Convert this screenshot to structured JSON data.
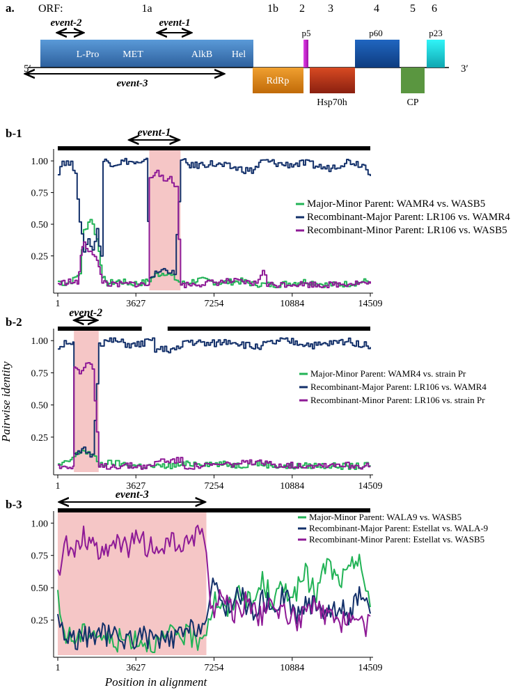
{
  "genome": {
    "panel_label": "a.",
    "orf_label": "ORF:",
    "orf_numbers": [
      "1a",
      "1b",
      "2",
      "3",
      "4",
      "5",
      "6"
    ],
    "five_prime": "5′",
    "three_prime": "3′",
    "domains": [
      "L-Pro",
      "MET",
      "AlkB",
      "Hel"
    ],
    "proteins": {
      "rdrp": "RdRp",
      "p5": "p5",
      "hsp": "Hsp70h",
      "p60": "p60",
      "cp": "CP",
      "p23": "p23"
    },
    "events": [
      "event-2",
      "event-1",
      "event-3"
    ],
    "colors": {
      "orf1a": "#3f7fc0",
      "rdrp": "#e08a18",
      "p5": "#c21cc8",
      "hsp": "#bc3216",
      "p60": "#1653a8",
      "cp": "#5a9640",
      "p23": "#16d6dc"
    }
  },
  "axes": {
    "ylabel": "Pairwise identity",
    "xlabel": "Position in alignment"
  },
  "series_colors": {
    "green": "#22b356",
    "navy": "#13306a",
    "magenta": "#8e1a96",
    "highlight": "#f5c6c6"
  },
  "chart_data": [
    {
      "type": "line",
      "panel_label": "b-1",
      "event_label": "event-1",
      "event_range": [
        3250,
        5700
      ],
      "highlight_range": [
        4250,
        5700
      ],
      "xlim": [
        1,
        14509
      ],
      "ylim": [
        0,
        1.05
      ],
      "x_ticks": [
        1,
        3627,
        7254,
        10884,
        14509
      ],
      "y_ticks": [
        0.25,
        0.5,
        0.75,
        1.0
      ],
      "y_tick_labels": [
        "0.25",
        "0.50",
        "0.75",
        "1.00"
      ],
      "series": [
        {
          "name": "Major-Minor Parent: WAMR4 vs. WASB5",
          "color": "green",
          "points": [
            [
              1,
              0.05
            ],
            [
              300,
              0.03
            ],
            [
              700,
              0.06
            ],
            [
              1000,
              0.12
            ],
            [
              1200,
              0.45
            ],
            [
              1500,
              0.55
            ],
            [
              1800,
              0.38
            ],
            [
              2050,
              0.1
            ],
            [
              2200,
              0.03
            ],
            [
              2800,
              0.05
            ],
            [
              3400,
              0.03
            ],
            [
              4000,
              0.04
            ],
            [
              4250,
              0.06
            ],
            [
              4500,
              0.1
            ],
            [
              5000,
              0.12
            ],
            [
              5500,
              0.06
            ],
            [
              5700,
              0.03
            ],
            [
              6500,
              0.06
            ],
            [
              7500,
              0.04
            ],
            [
              8500,
              0.05
            ],
            [
              9000,
              0.03
            ],
            [
              10000,
              0.02
            ],
            [
              11500,
              0.05
            ],
            [
              12500,
              0.02
            ],
            [
              13500,
              0.03
            ],
            [
              14300,
              0.05
            ],
            [
              14509,
              0.03
            ]
          ]
        },
        {
          "name": "Recombinant-Major Parent: LR106 vs. WAMR4",
          "color": "navy",
          "points": [
            [
              1,
              0.92
            ],
            [
              200,
              1.0
            ],
            [
              600,
              0.97
            ],
            [
              800,
              0.93
            ],
            [
              1000,
              0.5
            ],
            [
              1200,
              0.3
            ],
            [
              1400,
              0.38
            ],
            [
              1600,
              0.3
            ],
            [
              1800,
              0.45
            ],
            [
              2000,
              0.25
            ],
            [
              2100,
              1.0
            ],
            [
              2600,
              0.98
            ],
            [
              3200,
              1.0
            ],
            [
              3800,
              0.97
            ],
            [
              4100,
              1.0
            ],
            [
              4250,
              0.08
            ],
            [
              4600,
              0.12
            ],
            [
              5000,
              0.15
            ],
            [
              5400,
              0.1
            ],
            [
              5700,
              1.0
            ],
            [
              6200,
              0.96
            ],
            [
              7000,
              0.98
            ],
            [
              8000,
              0.95
            ],
            [
              9000,
              0.92
            ],
            [
              9500,
              1.0
            ],
            [
              10500,
              0.97
            ],
            [
              11500,
              0.98
            ],
            [
              12500,
              0.94
            ],
            [
              13500,
              1.0
            ],
            [
              14300,
              0.96
            ],
            [
              14509,
              0.88
            ]
          ]
        },
        {
          "name": "Recombinant-Minor Parent: LR106 vs. WASB5",
          "color": "magenta",
          "points": [
            [
              1,
              0.03
            ],
            [
              500,
              0.05
            ],
            [
              900,
              0.03
            ],
            [
              1050,
              0.25
            ],
            [
              1200,
              0.35
            ],
            [
              1400,
              0.3
            ],
            [
              1600,
              0.28
            ],
            [
              1800,
              0.2
            ],
            [
              2050,
              0.05
            ],
            [
              2500,
              0.02
            ],
            [
              3500,
              0.03
            ],
            [
              4200,
              0.02
            ],
            [
              4250,
              0.85
            ],
            [
              4600,
              0.95
            ],
            [
              4900,
              0.82
            ],
            [
              5200,
              0.88
            ],
            [
              5500,
              0.78
            ],
            [
              5700,
              0.02
            ],
            [
              6500,
              0.03
            ],
            [
              8000,
              0.05
            ],
            [
              9200,
              0.03
            ],
            [
              9500,
              0.15
            ],
            [
              9700,
              0.02
            ],
            [
              11000,
              0.03
            ],
            [
              12500,
              0.02
            ],
            [
              14000,
              0.04
            ],
            [
              14509,
              0.03
            ]
          ]
        }
      ]
    },
    {
      "type": "line",
      "panel_label": "b-2",
      "event_label": "event-2",
      "event_range": [
        700,
        1900
      ],
      "highlight_range": [
        750,
        1900
      ],
      "xlim": [
        1,
        14509
      ],
      "ylim": [
        0,
        1.05
      ],
      "x_ticks": [
        1,
        3627,
        7254,
        10884,
        14509
      ],
      "y_ticks": [
        0.25,
        0.5,
        0.75,
        1.0
      ],
      "y_tick_labels": [
        "0.25",
        "0.50",
        "0.75",
        "1.00"
      ],
      "series": [
        {
          "name": "Major-Minor Parent: WAMR4 vs. strain Pr",
          "color": "green",
          "points": [
            [
              1,
              0.03
            ],
            [
              400,
              0.05
            ],
            [
              750,
              0.1
            ],
            [
              1100,
              0.15
            ],
            [
              1500,
              0.12
            ],
            [
              1900,
              0.04
            ],
            [
              2500,
              0.05
            ],
            [
              3500,
              0.03
            ],
            [
              4500,
              0.02
            ],
            [
              5500,
              0.03
            ],
            [
              6500,
              0.05
            ],
            [
              7500,
              0.04
            ],
            [
              8500,
              0.03
            ],
            [
              9000,
              0.05
            ],
            [
              10500,
              0.02
            ],
            [
              12000,
              0.03
            ],
            [
              13500,
              0.02
            ],
            [
              14509,
              0.03
            ]
          ]
        },
        {
          "name": "Recombinant-Major Parent: LR106 vs. WAMR4",
          "color": "navy",
          "points": [
            [
              1,
              0.95
            ],
            [
              400,
              1.0
            ],
            [
              700,
              0.97
            ],
            [
              750,
              0.1
            ],
            [
              1200,
              0.15
            ],
            [
              1600,
              0.1
            ],
            [
              1900,
              0.98
            ],
            [
              2500,
              1.0
            ],
            [
              3500,
              0.96
            ],
            [
              4400,
              1.0
            ],
            [
              4500,
              0.93
            ],
            [
              5700,
              0.93
            ],
            [
              5800,
              1.0
            ],
            [
              7000,
              0.97
            ],
            [
              8000,
              1.0
            ],
            [
              9000,
              0.95
            ],
            [
              10500,
              1.0
            ],
            [
              12000,
              0.96
            ],
            [
              13500,
              1.0
            ],
            [
              14509,
              0.95
            ]
          ]
        },
        {
          "name": "Recombinant-Minor Parent: LR106 vs. strain Pr",
          "color": "magenta",
          "points": [
            [
              1,
              0.02
            ],
            [
              700,
              0.03
            ],
            [
              750,
              0.8
            ],
            [
              1000,
              0.75
            ],
            [
              1300,
              0.82
            ],
            [
              1600,
              0.78
            ],
            [
              1900,
              0.02
            ],
            [
              3000,
              0.03
            ],
            [
              4400,
              0.02
            ],
            [
              4500,
              0.07
            ],
            [
              5700,
              0.07
            ],
            [
              5800,
              0.02
            ],
            [
              7000,
              0.03
            ],
            [
              9000,
              0.05
            ],
            [
              11000,
              0.03
            ],
            [
              13000,
              0.04
            ],
            [
              14509,
              0.02
            ]
          ]
        }
      ]
    },
    {
      "type": "line",
      "panel_label": "b-3",
      "event_label": "event-3",
      "event_range": [
        1,
        6900
      ],
      "highlight_range": [
        1,
        6900
      ],
      "xlim": [
        1,
        14509
      ],
      "ylim": [
        0,
        1.05
      ],
      "x_ticks": [
        1,
        3627,
        7254,
        10884,
        14509
      ],
      "y_ticks": [
        0.25,
        0.5,
        0.75,
        1.0
      ],
      "y_tick_labels": [
        "0.25",
        "0.50",
        "0.75",
        "1.00"
      ],
      "series": [
        {
          "name": "Major-Minor Parent: WALA9 vs. WASB5",
          "color": "green",
          "points": [
            [
              1,
              0.4
            ],
            [
              300,
              0.15
            ],
            [
              800,
              0.1
            ],
            [
              1500,
              0.18
            ],
            [
              2500,
              0.08
            ],
            [
              3500,
              0.12
            ],
            [
              4500,
              0.06
            ],
            [
              5500,
              0.15
            ],
            [
              6500,
              0.1
            ],
            [
              6900,
              0.2
            ],
            [
              7300,
              0.42
            ],
            [
              7800,
              0.3
            ],
            [
              8500,
              0.5
            ],
            [
              9000,
              0.35
            ],
            [
              9500,
              0.55
            ],
            [
              10000,
              0.4
            ],
            [
              10500,
              0.5
            ],
            [
              11000,
              0.45
            ],
            [
              11500,
              0.6
            ],
            [
              12000,
              0.45
            ],
            [
              12500,
              0.7
            ],
            [
              13000,
              0.55
            ],
            [
              13500,
              0.6
            ],
            [
              14000,
              0.78
            ],
            [
              14300,
              0.45
            ],
            [
              14509,
              0.35
            ]
          ]
        },
        {
          "name": "Recombinant-Major Parent: Estellat vs. WALA-9",
          "color": "navy",
          "points": [
            [
              1,
              0.3
            ],
            [
              300,
              0.12
            ],
            [
              1000,
              0.1
            ],
            [
              2000,
              0.15
            ],
            [
              3000,
              0.1
            ],
            [
              4000,
              0.12
            ],
            [
              5000,
              0.08
            ],
            [
              6000,
              0.15
            ],
            [
              6900,
              0.25
            ],
            [
              7200,
              0.5
            ],
            [
              7800,
              0.35
            ],
            [
              8500,
              0.45
            ],
            [
              9000,
              0.3
            ],
            [
              9500,
              0.4
            ],
            [
              10000,
              0.35
            ],
            [
              10500,
              0.45
            ],
            [
              11000,
              0.3
            ],
            [
              11500,
              0.35
            ],
            [
              12000,
              0.4
            ],
            [
              12500,
              0.3
            ],
            [
              13000,
              0.35
            ],
            [
              13500,
              0.3
            ],
            [
              14000,
              0.42
            ],
            [
              14509,
              0.3
            ]
          ]
        },
        {
          "name": "Recombinant-Minor Parent: Estellat vs. WASB5",
          "color": "magenta",
          "points": [
            [
              1,
              0.55
            ],
            [
              300,
              0.9
            ],
            [
              700,
              0.75
            ],
            [
              1200,
              0.92
            ],
            [
              1800,
              0.78
            ],
            [
              2500,
              0.85
            ],
            [
              3200,
              0.8
            ],
            [
              3800,
              0.88
            ],
            [
              4500,
              0.78
            ],
            [
              5200,
              0.85
            ],
            [
              5900,
              0.8
            ],
            [
              6500,
              0.95
            ],
            [
              6900,
              0.82
            ],
            [
              7100,
              0.3
            ],
            [
              7600,
              0.45
            ],
            [
              8200,
              0.3
            ],
            [
              8800,
              0.4
            ],
            [
              9400,
              0.28
            ],
            [
              10000,
              0.35
            ],
            [
              10600,
              0.3
            ],
            [
              11200,
              0.25
            ],
            [
              11800,
              0.35
            ],
            [
              12400,
              0.28
            ],
            [
              13000,
              0.22
            ],
            [
              13600,
              0.3
            ],
            [
              14200,
              0.18
            ],
            [
              14509,
              0.28
            ]
          ]
        }
      ]
    }
  ]
}
